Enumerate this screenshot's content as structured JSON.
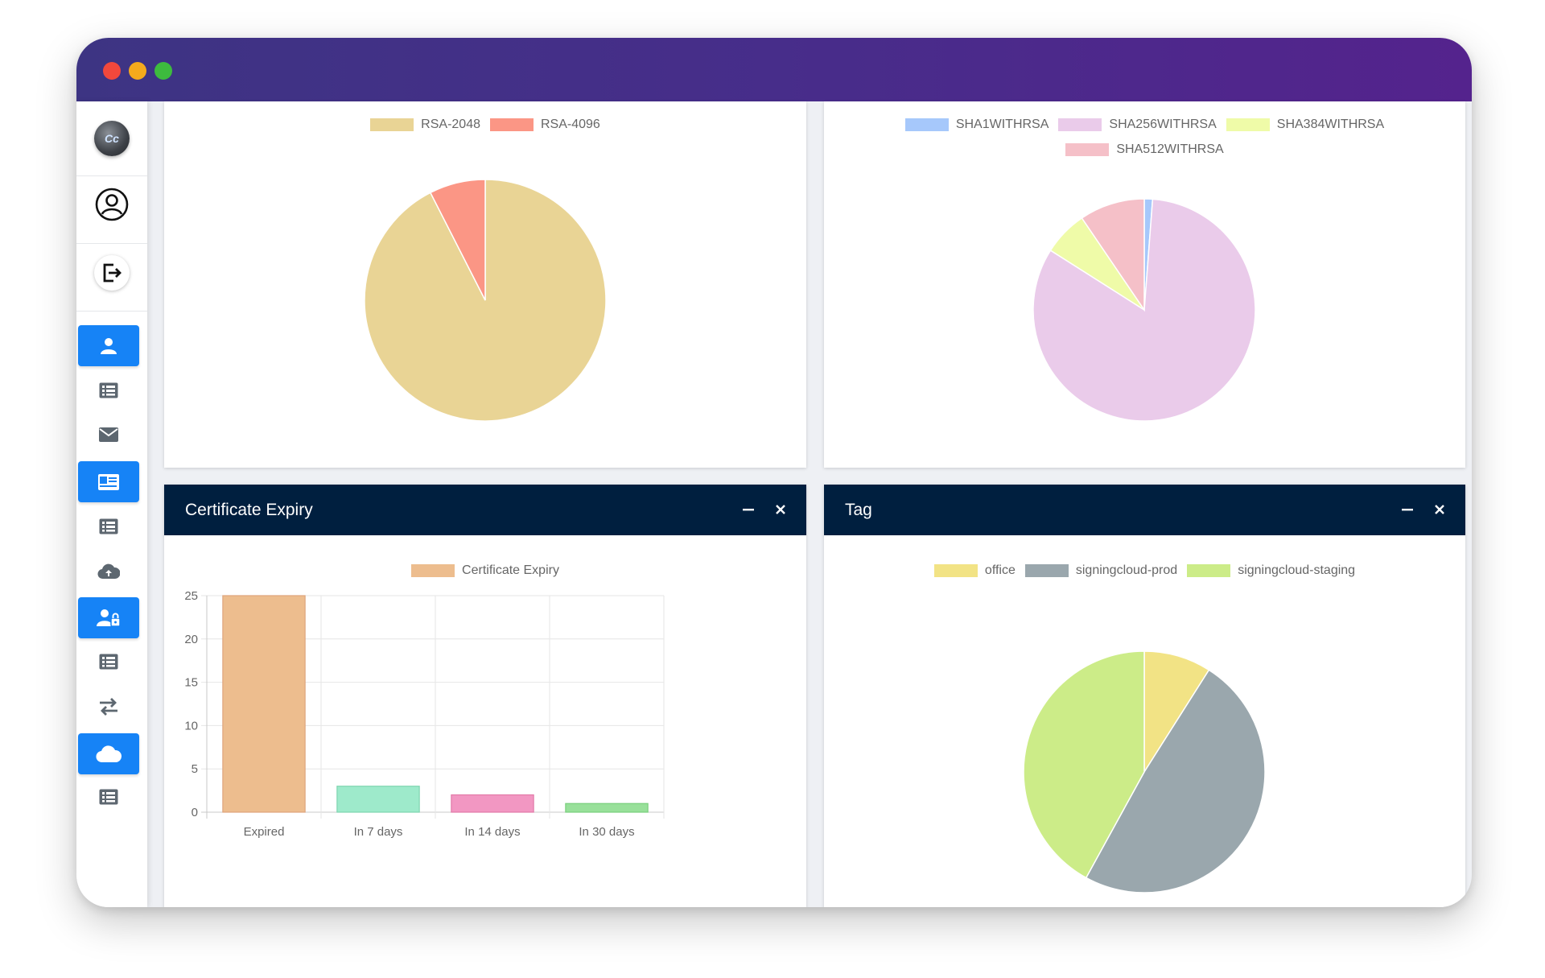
{
  "window": {
    "controls": [
      {
        "name": "close",
        "color": "#f2483c"
      },
      {
        "name": "minimize",
        "color": "#f5aa1c"
      },
      {
        "name": "maximize",
        "color": "#3dbb3e"
      }
    ]
  },
  "sidebar": {
    "items": [
      {
        "icon": "logo-icon"
      },
      {
        "icon": "user-profile-icon"
      },
      {
        "icon": "logout-icon"
      },
      {
        "icon": "user-icon",
        "active": true
      },
      {
        "icon": "list-icon"
      },
      {
        "icon": "envelope-icon"
      },
      {
        "icon": "id-card-icon",
        "active": true
      },
      {
        "icon": "list-icon"
      },
      {
        "icon": "cloud-upload-icon"
      },
      {
        "icon": "user-lock-icon",
        "active": true
      },
      {
        "icon": "list-icon"
      },
      {
        "icon": "exchange-icon"
      },
      {
        "icon": "cloud-icon",
        "active": true
      },
      {
        "icon": "list-icon"
      }
    ],
    "accent_color": "#1683f6"
  },
  "cards": {
    "key_size": {
      "legend": [
        {
          "label": "RSA-2048",
          "color": "#e9d495"
        },
        {
          "label": "RSA-4096",
          "color": "#fb9685"
        }
      ]
    },
    "signature": {
      "legend": [
        {
          "label": "SHA1WITHRSA",
          "color": "#a6c8fb"
        },
        {
          "label": "SHA256WITHRSA",
          "color": "#eacbea"
        },
        {
          "label": "SHA384WITHRSA",
          "color": "#effba8"
        },
        {
          "label": "SHA512WITHRSA",
          "color": "#f5c0c8"
        }
      ]
    },
    "expiry": {
      "title": "Certificate Expiry",
      "minimize_label": "−",
      "close_label": "×"
    },
    "tag": {
      "title": "Tag",
      "minimize_label": "−",
      "close_label": "×"
    }
  },
  "chart_data": [
    {
      "type": "pie",
      "categories": [
        "RSA-2048",
        "RSA-4096"
      ],
      "values": [
        92.5,
        7.5
      ],
      "colors": [
        "#e9d495",
        "#fb9685"
      ],
      "legend": "top"
    },
    {
      "type": "pie",
      "categories": [
        "SHA1WITHRSA",
        "SHA256WITHRSA",
        "SHA384WITHRSA",
        "SHA512WITHRSA"
      ],
      "values": [
        1.2,
        82.8,
        6.5,
        9.5
      ],
      "colors": [
        "#a6c8fb",
        "#eacbea",
        "#effba8",
        "#f5c0c8"
      ],
      "legend": "top"
    },
    {
      "type": "bar",
      "series": [
        {
          "name": "Certificate Expiry",
          "values": [
            25,
            3,
            2,
            1
          ]
        }
      ],
      "categories": [
        "Expired",
        "In 7 days",
        "In 14 days",
        "In 30 days"
      ],
      "bar_colors": [
        "#edbd8e",
        "#9eeacb",
        "#f297c2",
        "#98e09a"
      ],
      "bar_borders": [
        "#dea47c",
        "#7fd5b0",
        "#e27aa8",
        "#79cf7c"
      ],
      "ylim": [
        0,
        25
      ],
      "yticks": [
        "0",
        "5",
        "10",
        "15",
        "20",
        "25"
      ],
      "grid": true,
      "legend": "top"
    },
    {
      "type": "pie",
      "categories": [
        "office",
        "signingcloud-prod",
        "signingcloud-staging"
      ],
      "values": [
        9,
        49,
        42
      ],
      "colors": [
        "#f2e385",
        "#9aa7ad",
        "#ccec88"
      ],
      "legend": "top"
    }
  ]
}
